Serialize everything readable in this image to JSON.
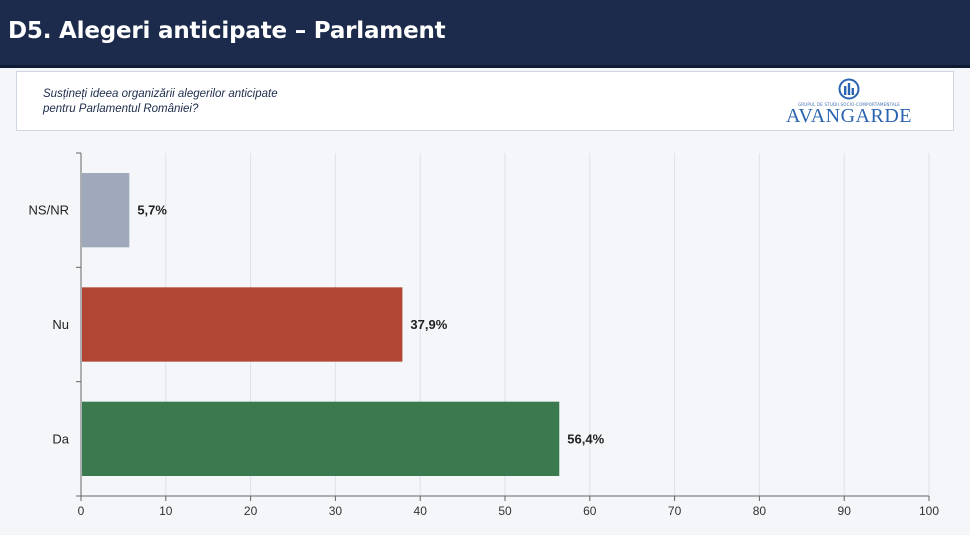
{
  "header": {
    "title": "D5. Alegeri anticipate – Parlament"
  },
  "question": {
    "line1": "Susțineți ideea organizării alegerilor anticipate",
    "line2": "pentru Parlamentul României?"
  },
  "logo": {
    "icon": "avangarde-logo-icon",
    "tagline": "GRUPUL DE STUDII SOCIO-COMPORTAMENTALE",
    "wordmark": "AVANGARDE"
  },
  "chart_data": {
    "type": "bar",
    "orientation": "horizontal",
    "categories": [
      "NS/NR",
      "Nu",
      "Da"
    ],
    "values": [
      5.7,
      37.9,
      56.4
    ],
    "value_labels": [
      "5,7%",
      "37,9%",
      "56,4%"
    ],
    "colors": [
      "#a0a9bb",
      "#b04633",
      "#3a7a4e"
    ],
    "xlim": [
      0,
      100
    ],
    "xticks": [
      0,
      10,
      20,
      30,
      40,
      50,
      60,
      70,
      80,
      90,
      100
    ],
    "grid": true,
    "title": "",
    "xlabel": "",
    "ylabel": ""
  }
}
